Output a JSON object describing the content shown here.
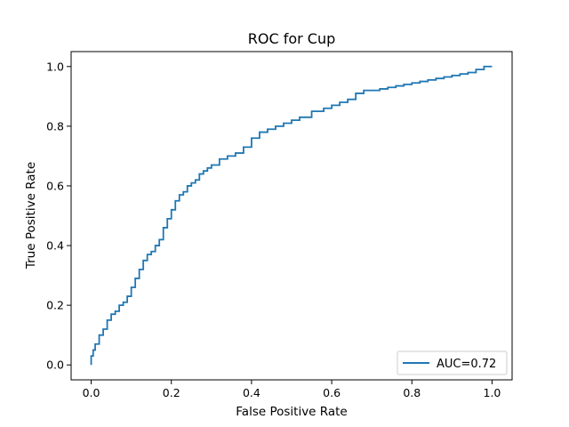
{
  "chart_data": {
    "type": "line",
    "title": "ROC for Cup",
    "xlabel": "False Positive Rate",
    "ylabel": "True Positive Rate",
    "xlim": [
      -0.05,
      1.05
    ],
    "ylim": [
      -0.05,
      1.05
    ],
    "x_ticks": [
      0.0,
      0.2,
      0.4,
      0.6,
      0.8,
      1.0
    ],
    "x_tick_labels": [
      "0.0",
      "0.2",
      "0.4",
      "0.6",
      "0.8",
      "1.0"
    ],
    "y_ticks": [
      0.0,
      0.2,
      0.4,
      0.6,
      0.8,
      1.0
    ],
    "y_tick_labels": [
      "0.0",
      "0.2",
      "0.4",
      "0.6",
      "0.8",
      "1.0"
    ],
    "grid": false,
    "legend_position": "lower-right",
    "series": [
      {
        "name": "AUC=0.72",
        "color": "#1f77b4",
        "x": [
          0.0,
          0.0,
          0.005,
          0.01,
          0.02,
          0.03,
          0.04,
          0.05,
          0.06,
          0.07,
          0.08,
          0.09,
          0.1,
          0.11,
          0.12,
          0.13,
          0.14,
          0.15,
          0.16,
          0.17,
          0.18,
          0.19,
          0.2,
          0.21,
          0.22,
          0.23,
          0.24,
          0.25,
          0.26,
          0.27,
          0.28,
          0.29,
          0.3,
          0.32,
          0.34,
          0.36,
          0.38,
          0.4,
          0.42,
          0.44,
          0.46,
          0.48,
          0.5,
          0.52,
          0.55,
          0.58,
          0.6,
          0.62,
          0.64,
          0.66,
          0.68,
          0.7,
          0.72,
          0.74,
          0.76,
          0.78,
          0.8,
          0.82,
          0.84,
          0.86,
          0.88,
          0.9,
          0.92,
          0.94,
          0.96,
          0.98,
          1.0
        ],
        "y": [
          0.0,
          0.03,
          0.05,
          0.07,
          0.1,
          0.12,
          0.15,
          0.17,
          0.18,
          0.2,
          0.21,
          0.23,
          0.26,
          0.29,
          0.32,
          0.35,
          0.37,
          0.38,
          0.4,
          0.42,
          0.46,
          0.49,
          0.52,
          0.55,
          0.57,
          0.58,
          0.6,
          0.61,
          0.62,
          0.64,
          0.65,
          0.66,
          0.67,
          0.69,
          0.7,
          0.71,
          0.73,
          0.76,
          0.78,
          0.79,
          0.8,
          0.81,
          0.82,
          0.83,
          0.85,
          0.86,
          0.87,
          0.88,
          0.89,
          0.91,
          0.92,
          0.92,
          0.925,
          0.93,
          0.935,
          0.94,
          0.945,
          0.95,
          0.955,
          0.96,
          0.965,
          0.97,
          0.975,
          0.98,
          0.99,
          1.0,
          1.0
        ]
      }
    ]
  }
}
